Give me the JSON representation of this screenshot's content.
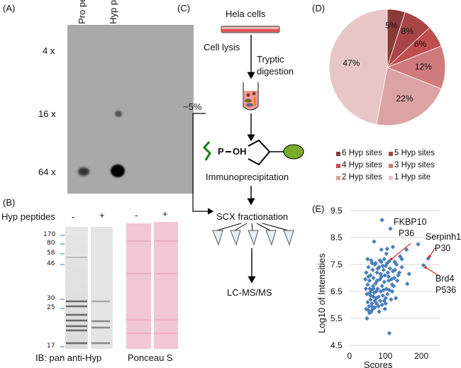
{
  "panel_a": {
    "label": "(A)",
    "columns": [
      "Pro pep",
      "Hyp pep"
    ],
    "rows": [
      "4 x",
      "16 x",
      "64 x"
    ]
  },
  "panel_b": {
    "label": "(B)",
    "treatment_label": "Hyp peptides",
    "lane_signs": [
      "-",
      "+",
      "-",
      "+"
    ],
    "markers": [
      "170",
      "80",
      "58",
      "46",
      "30",
      "25",
      "17"
    ],
    "blot_caption": "IB: pan anti-Hyp",
    "stain_caption": "Ponceau S"
  },
  "panel_c": {
    "label": "(C)",
    "steps": {
      "start": "Hela cells",
      "lysis": "Cell lysis",
      "digestion_1": "Tryptic",
      "digestion_2": "digestion",
      "ip": "Immunoprecipitation",
      "scx": "SCX fractionation",
      "ms": "LC-MS/MS"
    },
    "bypass_label": "~5%",
    "molecule_p": "P",
    "molecule_oh": "OH"
  },
  "chart_data": [
    {
      "type": "pie",
      "panel_label": "(D)",
      "categories": [
        "6 Hyp sites",
        "5 Hyp sites",
        "4 Hyp sites",
        "3 Hyp sites",
        "2 Hyp sites",
        "1 Hyp site"
      ],
      "values": [
        5,
        8,
        6,
        12,
        22,
        47
      ],
      "data_labels": [
        "5%",
        "8%",
        "6%",
        "12%",
        "22%",
        "47%"
      ],
      "colors": [
        "#8b3a3a",
        "#a84446",
        "#c04d4f",
        "#cf7b7c",
        "#dca3a4",
        "#e8c6c7"
      ],
      "legend_placement": "bottom"
    },
    {
      "type": "scatter",
      "panel_label": "(E)",
      "xlabel": "Scores",
      "ylabel": "Log10 of Intensities",
      "xlim": [
        0,
        250
      ],
      "ylim": [
        4.5,
        9.5
      ],
      "xticks": [
        "0",
        "100",
        "200"
      ],
      "yticks": [
        "4.5",
        "5.5",
        "6.5",
        "7.5",
        "8.5",
        "9.5"
      ],
      "grid": true,
      "color": "#4a7ebb",
      "points": [
        [
          90,
          9.15
        ],
        [
          113,
          8.83
        ],
        [
          68,
          8.35
        ],
        [
          190,
          8.25
        ],
        [
          88,
          8.05
        ],
        [
          104,
          8.08
        ],
        [
          158,
          8.05
        ],
        [
          120,
          8.15
        ],
        [
          140,
          7.8
        ],
        [
          145,
          7.7
        ],
        [
          102,
          7.9
        ],
        [
          218,
          7.72
        ],
        [
          205,
          7.47
        ],
        [
          110,
          7.62
        ],
        [
          125,
          7.6
        ],
        [
          130,
          7.5
        ],
        [
          145,
          7.4
        ],
        [
          165,
          7.15
        ],
        [
          160,
          6.78
        ],
        [
          128,
          6.25
        ],
        [
          110,
          4.95
        ],
        [
          48,
          5.5
        ],
        [
          52,
          5.8
        ],
        [
          55,
          5.7
        ],
        [
          62,
          5.95
        ],
        [
          70,
          5.9
        ],
        [
          82,
          5.75
        ],
        [
          98,
          5.85
        ],
        [
          50,
          6.1
        ],
        [
          58,
          6.2
        ],
        [
          66,
          6.3
        ],
        [
          75,
          6.05
        ],
        [
          85,
          6.15
        ],
        [
          92,
          6.35
        ],
        [
          105,
          6.4
        ],
        [
          115,
          6.2
        ],
        [
          45,
          6.6
        ],
        [
          50,
          6.75
        ],
        [
          55,
          6.9
        ],
        [
          60,
          6.55
        ],
        [
          65,
          6.7
        ],
        [
          72,
          6.8
        ],
        [
          78,
          6.6
        ],
        [
          84,
          6.95
        ],
        [
          90,
          6.7
        ],
        [
          96,
          6.85
        ],
        [
          102,
          6.6
        ],
        [
          108,
          6.9
        ],
        [
          118,
          6.75
        ],
        [
          124,
          7.0
        ],
        [
          132,
          6.9
        ],
        [
          138,
          7.2
        ],
        [
          46,
          7.2
        ],
        [
          52,
          7.4
        ],
        [
          58,
          7.1
        ],
        [
          64,
          7.3
        ],
        [
          70,
          7.5
        ],
        [
          76,
          7.2
        ],
        [
          82,
          7.4
        ],
        [
          88,
          7.6
        ],
        [
          94,
          7.3
        ],
        [
          100,
          7.45
        ],
        [
          106,
          7.2
        ],
        [
          112,
          7.35
        ],
        [
          120,
          7.25
        ],
        [
          50,
          7.7
        ],
        [
          60,
          7.65
        ],
        [
          72,
          7.55
        ],
        [
          84,
          7.65
        ],
        [
          96,
          7.7
        ],
        [
          48,
          6.4
        ],
        [
          56,
          6.45
        ],
        [
          62,
          6.05
        ],
        [
          68,
          6.45
        ],
        [
          74,
          6.5
        ],
        [
          80,
          6.3
        ],
        [
          86,
          6.5
        ],
        [
          94,
          6.55
        ],
        [
          100,
          6.25
        ],
        [
          110,
          6.55
        ],
        [
          54,
          5.95
        ],
        [
          60,
          5.75
        ],
        [
          66,
          6.6
        ],
        [
          76,
          6.9
        ],
        [
          88,
          7.05
        ],
        [
          98,
          7.1
        ],
        [
          108,
          7.05
        ],
        [
          116,
          6.95
        ],
        [
          44,
          6.95
        ],
        [
          52,
          7.05
        ],
        [
          58,
          6.35
        ],
        [
          64,
          5.85
        ],
        [
          70,
          6.15
        ],
        [
          80,
          5.95
        ],
        [
          90,
          6.0
        ],
        [
          100,
          6.05
        ],
        [
          46,
          5.85
        ],
        [
          56,
          6.6
        ],
        [
          66,
          7.0
        ],
        [
          78,
          7.35
        ],
        [
          92,
          7.45
        ],
        [
          104,
          7.55
        ],
        [
          126,
          7.3
        ],
        [
          135,
          7.1
        ],
        [
          118,
          6.5
        ],
        [
          122,
          6.7
        ],
        [
          62,
          7.55
        ],
        [
          86,
          7.15
        ],
        [
          74,
          6.25
        ],
        [
          96,
          6.15
        ]
      ],
      "annotations": [
        {
          "text_1": "FKBP10",
          "text_2": "P36",
          "x": 110,
          "y": 7.62
        },
        {
          "text_1": "Serpinh1",
          "text_2": "P30",
          "x": 218,
          "y": 7.72
        },
        {
          "text_1": "Brd4",
          "text_2": "P536",
          "x": 205,
          "y": 7.47
        }
      ]
    }
  ]
}
